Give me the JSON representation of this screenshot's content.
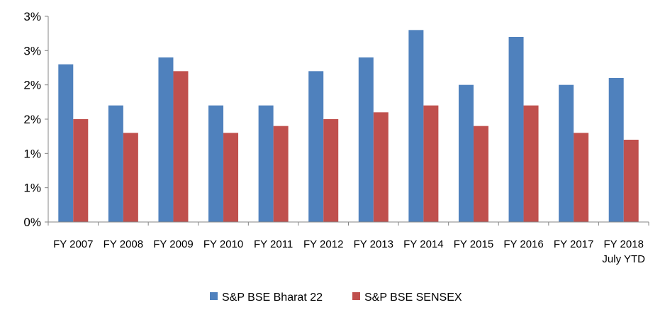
{
  "chart_data": {
    "type": "bar",
    "title": "",
    "xlabel": "",
    "ylabel": "",
    "categories": [
      "FY 2007",
      "FY 2008",
      "FY 2009",
      "FY 2010",
      "FY 2011",
      "FY 2012",
      "FY 2013",
      "FY 2014",
      "FY 2015",
      "FY 2016",
      "FY 2017",
      "FY 2018\nJuly YTD"
    ],
    "ylim": [
      0,
      3.0
    ],
    "yticks": [
      0,
      0.5,
      1.0,
      1.5,
      2.0,
      2.5,
      3.0
    ],
    "ytick_labels": [
      "0%",
      "1%",
      "1%",
      "2%",
      "2%",
      "3%",
      "3%"
    ],
    "grid": false,
    "legend_position": "bottom",
    "series": [
      {
        "name": "S&P BSE Bharat 22",
        "color": "#4F81BD",
        "values": [
          2.3,
          1.7,
          2.4,
          1.7,
          1.7,
          2.2,
          2.4,
          2.8,
          2.0,
          2.7,
          2.0,
          2.1
        ]
      },
      {
        "name": "S&P BSE SENSEX",
        "color": "#C0504D",
        "values": [
          1.5,
          1.3,
          2.2,
          1.3,
          1.4,
          1.5,
          1.6,
          1.7,
          1.4,
          1.7,
          1.3,
          1.2
        ]
      }
    ]
  }
}
